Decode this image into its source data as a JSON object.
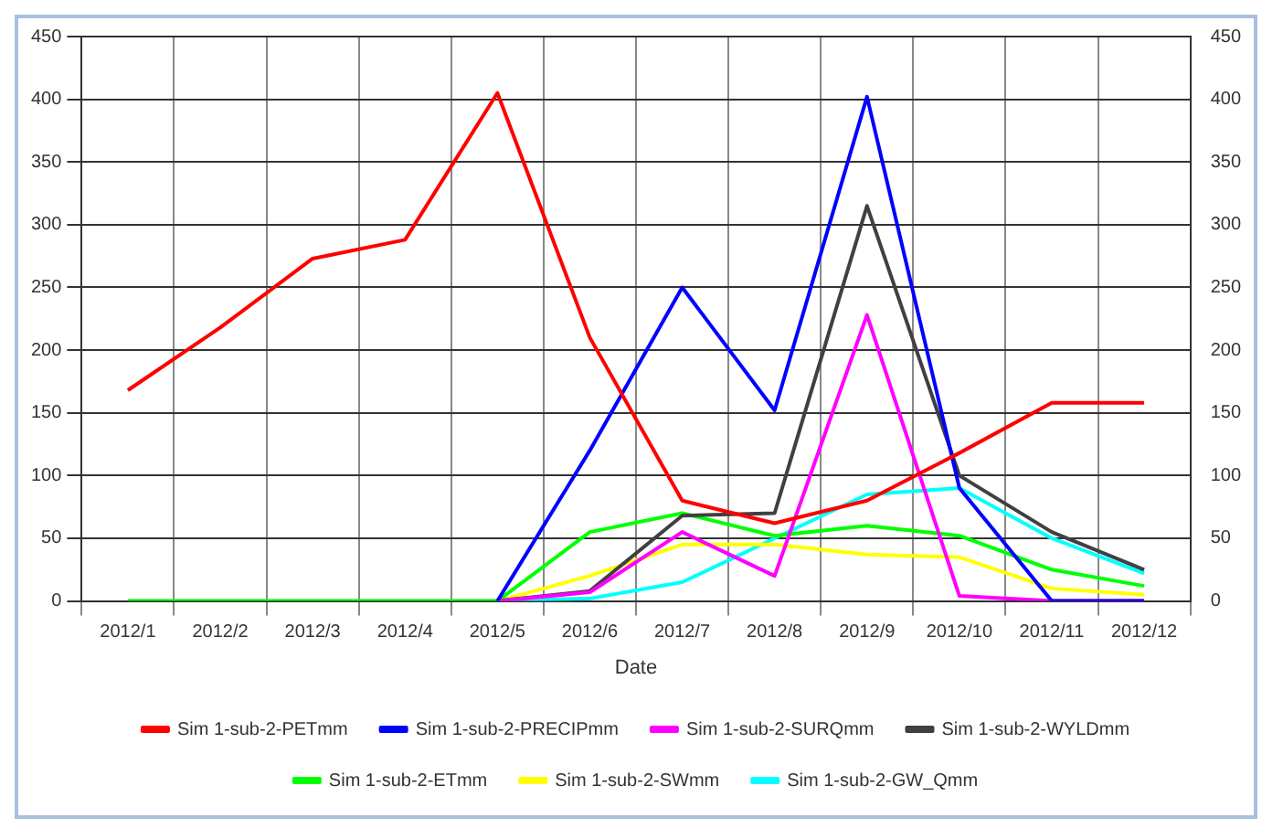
{
  "chart_data": {
    "type": "line",
    "xlabel": "Date",
    "categories": [
      "2012/1",
      "2012/2",
      "2012/3",
      "2012/4",
      "2012/5",
      "2012/6",
      "2012/7",
      "2012/8",
      "2012/9",
      "2012/10",
      "2012/11",
      "2012/12"
    ],
    "series": [
      {
        "name": "Sim 1-sub-2-PETmm",
        "color": "#ff0000",
        "values": [
          168,
          218,
          273,
          288,
          405,
          210,
          80,
          62,
          80,
          118,
          158,
          158
        ]
      },
      {
        "name": "Sim 1-sub-2-PRECIPmm",
        "color": "#0000ff",
        "values": [
          null,
          null,
          null,
          null,
          0,
          120,
          250,
          152,
          402,
          90,
          0,
          0
        ]
      },
      {
        "name": "Sim 1-sub-2-SURQmm",
        "color": "#ff00ff",
        "values": [
          null,
          null,
          null,
          null,
          0,
          7,
          55,
          20,
          228,
          4,
          0,
          0
        ]
      },
      {
        "name": "Sim 1-sub-2-WYLDmm",
        "color": "#404040",
        "values": [
          null,
          null,
          null,
          null,
          0,
          8,
          68,
          70,
          315,
          100,
          55,
          25
        ]
      },
      {
        "name": "Sim 1-sub-2-ETmm",
        "color": "#00ff00",
        "values": [
          0,
          0,
          0,
          0,
          0,
          55,
          70,
          52,
          60,
          52,
          25,
          12
        ]
      },
      {
        "name": "Sim 1-sub-2-SWmm",
        "color": "#ffff00",
        "values": [
          null,
          null,
          null,
          null,
          0,
          20,
          45,
          45,
          37,
          35,
          10,
          5
        ]
      },
      {
        "name": "Sim 1-sub-2-GW_Qmm",
        "color": "#00ffff",
        "values": [
          null,
          null,
          null,
          null,
          0,
          2,
          15,
          50,
          85,
          90,
          50,
          22
        ]
      }
    ],
    "ylim": [
      0,
      450
    ],
    "yticks": [
      0,
      50,
      100,
      150,
      200,
      250,
      300,
      350,
      400,
      450
    ],
    "y2lim": [
      0,
      450
    ],
    "y2ticks": [
      0,
      50,
      100,
      150,
      200,
      250,
      300,
      350,
      400,
      450
    ],
    "grid": true,
    "legend": "bottom",
    "marker": "none",
    "line_style": "solid"
  }
}
